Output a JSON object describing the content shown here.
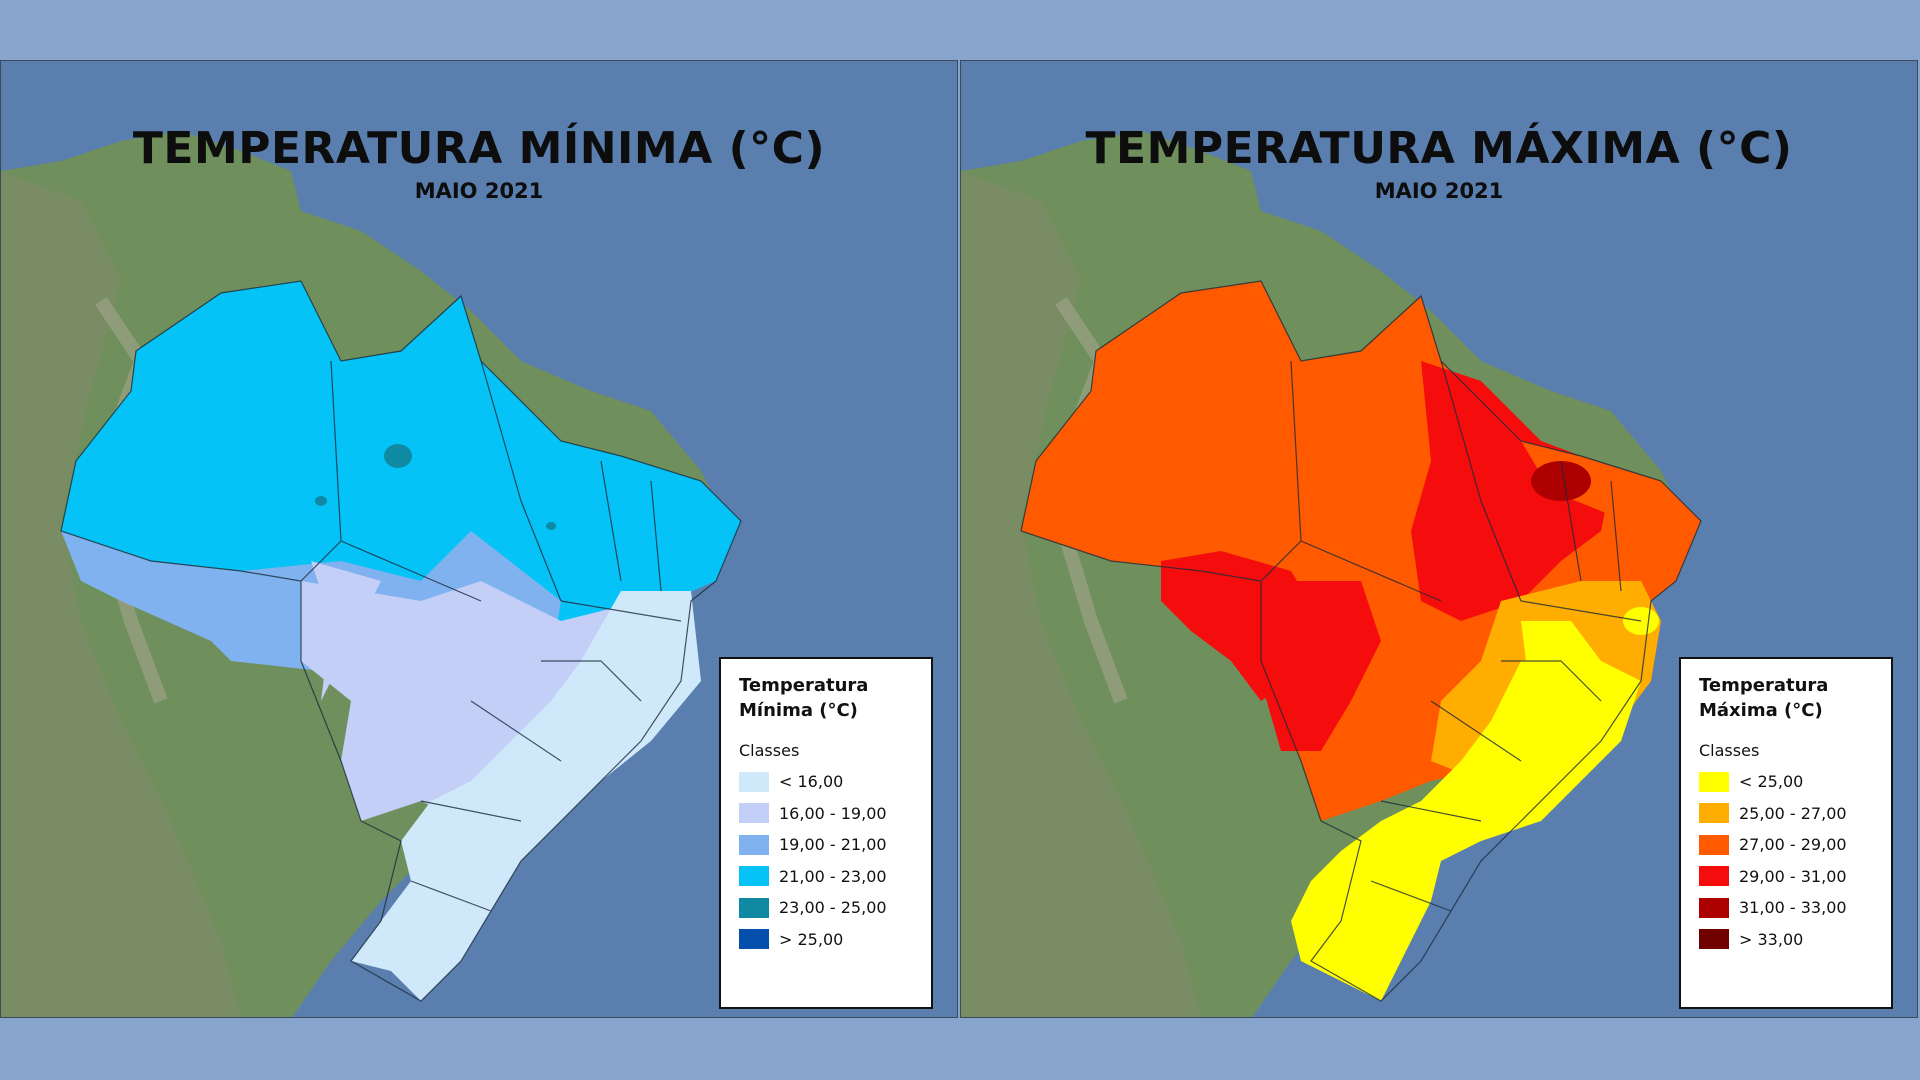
{
  "maps": [
    {
      "title": "TEMPERATURA MÍNIMA (°C)",
      "subtitle": "MAIO 2021",
      "legend": {
        "title_line1": "Temperatura",
        "title_line2": "Mínima (°C)",
        "classes_label": "Classes",
        "items": [
          {
            "label": "< 16,00",
            "color": "#cfe9fb"
          },
          {
            "label": "16,00 - 19,00",
            "color": "#c3cff7"
          },
          {
            "label": "19,00 - 21,00",
            "color": "#7fb2ef"
          },
          {
            "label": "21,00 - 23,00",
            "color": "#05c3f6"
          },
          {
            "label": "23,00 - 25,00",
            "color": "#0f8aa2"
          },
          {
            "label": "> 25,00",
            "color": "#0650ad"
          }
        ]
      }
    },
    {
      "title": "TEMPERATURA MÁXIMA (°C)",
      "subtitle": "MAIO 2021",
      "legend": {
        "title_line1": "Temperatura",
        "title_line2": "Máxima (°C)",
        "classes_label": "Classes",
        "items": [
          {
            "label": "< 25,00",
            "color": "#ffff00"
          },
          {
            "label": "25,00 - 27,00",
            "color": "#ffad00"
          },
          {
            "label": "27,00 - 29,00",
            "color": "#ff5a00"
          },
          {
            "label": "29,00 - 31,00",
            "color": "#f50d0d"
          },
          {
            "label": "31,00 - 33,00",
            "color": "#ad0000"
          },
          {
            "label": "> 33,00",
            "color": "#700000"
          }
        ]
      }
    }
  ]
}
